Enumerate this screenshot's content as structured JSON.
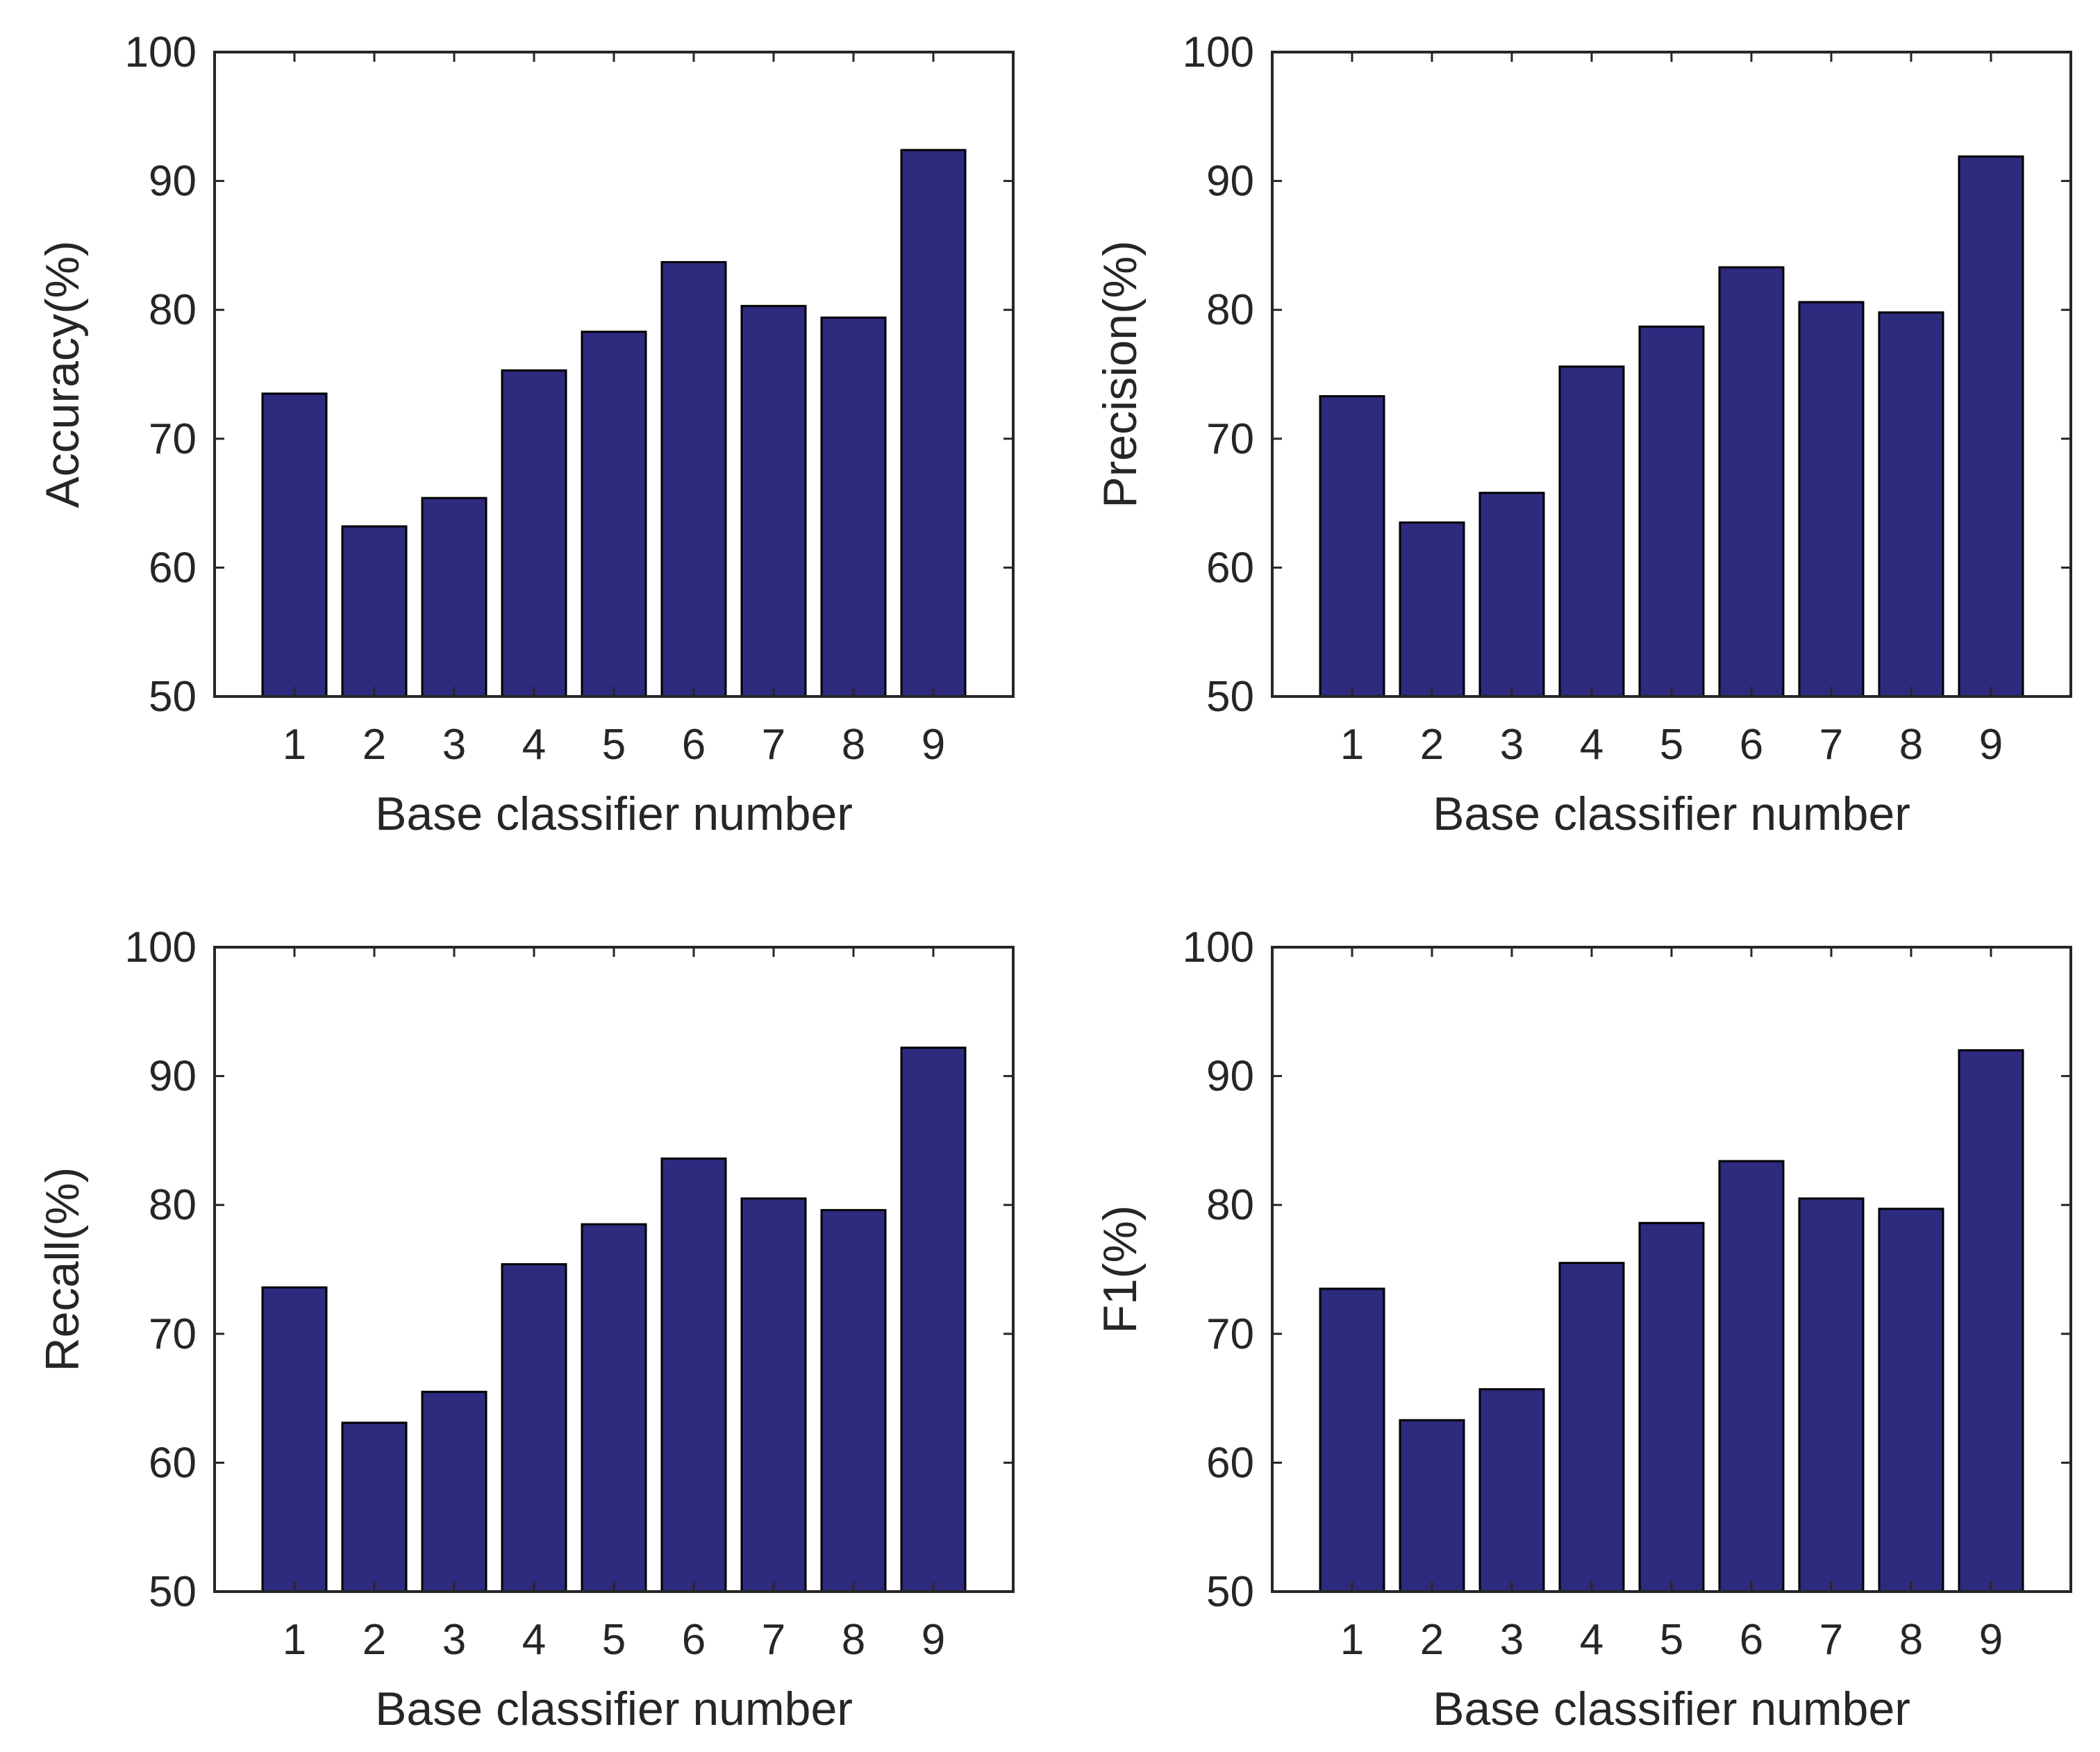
{
  "chart_data": [
    {
      "type": "bar",
      "id": "accuracy",
      "title": "",
      "xlabel": "Base classifier number",
      "ylabel": "Accuracy(%)",
      "categories": [
        "1",
        "2",
        "3",
        "4",
        "5",
        "6",
        "7",
        "8",
        "9"
      ],
      "values": [
        73.5,
        63.2,
        65.4,
        75.3,
        78.3,
        83.7,
        80.3,
        79.4,
        92.4
      ],
      "ylim": [
        50,
        100
      ],
      "yticks": [
        50,
        60,
        70,
        80,
        90,
        100
      ],
      "grid": false
    },
    {
      "type": "bar",
      "id": "precision",
      "title": "",
      "xlabel": "Base classifier number",
      "ylabel": "Precision(%)",
      "categories": [
        "1",
        "2",
        "3",
        "4",
        "5",
        "6",
        "7",
        "8",
        "9"
      ],
      "values": [
        73.3,
        63.5,
        65.8,
        75.6,
        78.7,
        83.3,
        80.6,
        79.8,
        91.9
      ],
      "ylim": [
        50,
        100
      ],
      "yticks": [
        50,
        60,
        70,
        80,
        90,
        100
      ],
      "grid": false
    },
    {
      "type": "bar",
      "id": "recall",
      "title": "",
      "xlabel": "Base classifier number",
      "ylabel": "Recall(%)",
      "categories": [
        "1",
        "2",
        "3",
        "4",
        "5",
        "6",
        "7",
        "8",
        "9"
      ],
      "values": [
        73.6,
        63.1,
        65.5,
        75.4,
        78.5,
        83.6,
        80.5,
        79.6,
        92.2
      ],
      "ylim": [
        50,
        100
      ],
      "yticks": [
        50,
        60,
        70,
        80,
        90,
        100
      ],
      "grid": false
    },
    {
      "type": "bar",
      "id": "f1",
      "title": "",
      "xlabel": "Base classifier number",
      "ylabel": "F1(%)",
      "categories": [
        "1",
        "2",
        "3",
        "4",
        "5",
        "6",
        "7",
        "8",
        "9"
      ],
      "values": [
        73.5,
        63.3,
        65.7,
        75.5,
        78.6,
        83.4,
        80.5,
        79.7,
        92.0
      ],
      "ylim": [
        50,
        100
      ],
      "yticks": [
        50,
        60,
        70,
        80,
        90,
        100
      ],
      "grid": false
    }
  ],
  "colors": {
    "bar_fill": "#2e2a7e",
    "bar_edge": "#000000",
    "axis": "#262626",
    "background": "#ffffff"
  }
}
